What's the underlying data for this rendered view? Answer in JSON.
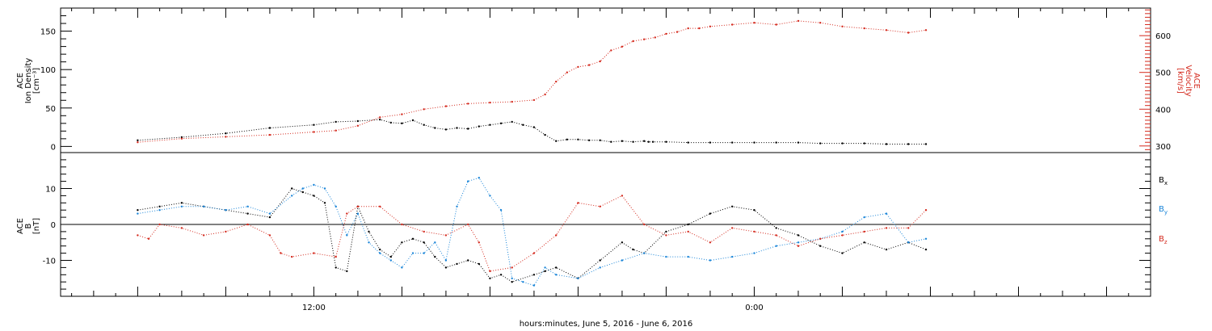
{
  "chart_data": [
    {
      "type": "scatter",
      "panel": "top",
      "left_axis": {
        "label_lines": [
          "ACE",
          "Ion Density",
          "[cm⁻³]"
        ],
        "range": [
          -8,
          180
        ],
        "ticks": [
          0,
          50,
          100,
          150
        ],
        "tick_labels": [
          "0",
          "50",
          "100",
          "150"
        ]
      },
      "right_axis": {
        "label_lines": [
          "ACE",
          "Velocity",
          "[km/s]"
        ],
        "range": [
          282,
          675
        ],
        "ticks": [
          300,
          400,
          500,
          600
        ],
        "tick_labels": [
          "300",
          "400",
          "500",
          "600"
        ],
        "color": "#d42a1e"
      },
      "series": [
        {
          "color": "#000000",
          "axis": "left",
          "x": [
            -8,
            -6,
            -4,
            -2,
            0,
            1,
            2,
            3,
            3.5,
            4,
            4.5,
            5,
            5.5,
            6,
            6.5,
            7,
            7.5,
            8,
            8.5,
            9,
            9.5,
            10,
            10.5,
            11,
            11.5,
            12,
            12.5,
            13,
            13.5,
            14,
            14.5,
            15,
            15.2,
            15.4,
            16,
            17,
            18,
            19,
            20,
            21,
            22,
            23,
            24,
            25,
            26,
            27,
            27.8
          ],
          "y": [
            8,
            12,
            17,
            24,
            28,
            32,
            33,
            35,
            31,
            30,
            34,
            28,
            24,
            22,
            24,
            23,
            26,
            28,
            30,
            32,
            28,
            25,
            15,
            7,
            9,
            9,
            8,
            8,
            6,
            7,
            6,
            7,
            6,
            6,
            6,
            5,
            5,
            5,
            5,
            5,
            5,
            4,
            4,
            4,
            3,
            3,
            3
          ]
        },
        {
          "color": "#d42a1e",
          "axis": "right",
          "x": [
            -8,
            -6,
            -4,
            -2,
            0,
            1,
            2,
            3,
            4,
            5,
            6,
            7,
            8,
            9,
            10,
            10.5,
            11,
            11.5,
            12,
            12.5,
            13,
            13.5,
            14,
            14.5,
            15,
            15.5,
            16,
            16.5,
            17,
            17.5,
            18,
            19,
            20,
            21,
            22,
            23,
            24,
            25,
            26,
            27,
            27.8
          ],
          "y": [
            310,
            320,
            325,
            330,
            338,
            342,
            355,
            378,
            386,
            400,
            408,
            415,
            418,
            420,
            425,
            440,
            475,
            500,
            515,
            520,
            530,
            560,
            570,
            585,
            590,
            595,
            605,
            610,
            620,
            620,
            625,
            630,
            635,
            630,
            640,
            635,
            625,
            620,
            615,
            608,
            615
          ]
        }
      ]
    },
    {
      "type": "scatter",
      "panel": "bottom",
      "left_axis": {
        "label_lines": [
          "ACE",
          "B",
          "[nT]"
        ],
        "range": [
          -20,
          20
        ],
        "ticks": [
          -10,
          0,
          10
        ],
        "tick_labels": [
          "-10",
          "0",
          "10"
        ]
      },
      "zero_line": true,
      "series": [
        {
          "name": "Bx",
          "color": "#000000",
          "x": [
            -8,
            -7,
            -6,
            -5,
            -4,
            -3,
            -2,
            -1,
            -0.5,
            0,
            0.5,
            1,
            1.5,
            2,
            2.5,
            3,
            3.5,
            4,
            4.5,
            5,
            5.5,
            6,
            6.5,
            7,
            7.5,
            8,
            8.5,
            9,
            10,
            10.5,
            11,
            12,
            13,
            14,
            14.5,
            15,
            16,
            17,
            18,
            19,
            20,
            21,
            22,
            23,
            24,
            25,
            26,
            27,
            27.8
          ],
          "y": [
            4,
            5,
            6,
            5,
            4,
            3,
            2,
            10,
            9,
            8,
            6,
            -12,
            -13,
            5,
            -2,
            -7,
            -9,
            -5,
            -4,
            -5,
            -9,
            -12,
            -11,
            -10,
            -11,
            -15,
            -14,
            -16,
            -14,
            -13,
            -12,
            -15,
            -10,
            -5,
            -7,
            -8,
            -2,
            0,
            3,
            5,
            4,
            -1,
            -3,
            -6,
            -8,
            -5,
            -7,
            -5,
            -7
          ]
        },
        {
          "name": "By",
          "color": "#1a85d8",
          "x": [
            -8,
            -7,
            -6,
            -5,
            -4,
            -3,
            -2,
            -1,
            -0.5,
            0,
            0.5,
            1,
            1.5,
            2,
            2.5,
            3,
            3.5,
            4,
            4.5,
            5,
            5.5,
            6,
            6.5,
            7,
            7.5,
            8,
            8.5,
            9,
            9.5,
            10,
            10.5,
            11,
            12,
            13,
            14,
            15,
            16,
            17,
            18,
            19,
            20,
            21,
            22,
            23,
            24,
            25,
            26,
            27,
            27.8
          ],
          "y": [
            3,
            4,
            5,
            5,
            4,
            5,
            3,
            8,
            10,
            11,
            10,
            5,
            -3,
            3,
            -5,
            -8,
            -10,
            -12,
            -8,
            -8,
            -5,
            -10,
            5,
            12,
            13,
            8,
            4,
            -15,
            -16,
            -17,
            -12,
            -14,
            -15,
            -12,
            -10,
            -8,
            -9,
            -9,
            -10,
            -9,
            -8,
            -6,
            -5,
            -4,
            -2,
            2,
            3,
            -5,
            -4
          ]
        },
        {
          "name": "Bz",
          "color": "#d42a1e",
          "x": [
            -8,
            -7.5,
            -7,
            -6,
            -5,
            -4,
            -3,
            -2,
            -1.5,
            -1,
            0,
            1,
            1.5,
            2,
            3,
            4,
            5,
            6,
            7,
            7.5,
            8,
            9,
            10,
            11,
            12,
            13,
            14,
            15,
            16,
            17,
            18,
            19,
            20,
            21,
            22,
            23,
            24,
            25,
            26,
            27,
            27.8
          ],
          "y": [
            -3,
            -4,
            0,
            -1,
            -3,
            -2,
            0,
            -3,
            -8,
            -9,
            -8,
            -9,
            3,
            5,
            5,
            0,
            -2,
            -3,
            0,
            -5,
            -13,
            -12,
            -8,
            -3,
            6,
            5,
            8,
            0,
            -3,
            -2,
            -5,
            -1,
            -2,
            -3,
            -6,
            -4,
            -3,
            -2,
            -1,
            -1,
            4
          ]
        }
      ],
      "legend_labels": [
        {
          "base": "B",
          "sub": "x",
          "color": "#000000"
        },
        {
          "base": "B",
          "sub": "y",
          "color": "#1a85d8"
        },
        {
          "base": "B",
          "sub": "z",
          "color": "#d42a1e"
        }
      ]
    }
  ],
  "x_axis": {
    "range_hours": [
      -11.5,
      38
    ],
    "label": "hours:minutes, June  5, 2016 - June  6, 2016",
    "tick_labels": [
      {
        "hour": 0,
        "label": "12:00"
      },
      {
        "hour": 20,
        "label": "0:00"
      }
    ]
  }
}
